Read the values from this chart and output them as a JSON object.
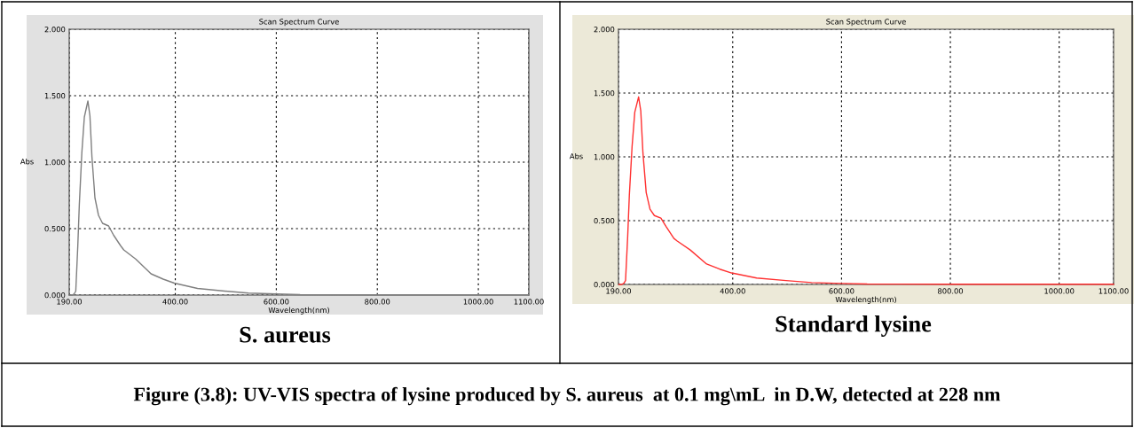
{
  "chart_data": [
    {
      "type": "line",
      "title": "Scan Spectrum Curve",
      "xlabel": "Wavelength(nm)",
      "ylabel": "Abs",
      "x": [
        191,
        196,
        200,
        203,
        207,
        210,
        215,
        220,
        227,
        231,
        235,
        241,
        248,
        256,
        268,
        278,
        292,
        298,
        322,
        352,
        376,
        398,
        444,
        498,
        545,
        600,
        647,
        800,
        1000,
        1100
      ],
      "series": [
        {
          "color": "#7f7f7f",
          "values": [
            0,
            0,
            0.01,
            0.03,
            0.37,
            0.68,
            1.07,
            1.34,
            1.46,
            1.35,
            1.04,
            0.73,
            0.6,
            0.54,
            0.52,
            0.45,
            0.37,
            0.34,
            0.27,
            0.16,
            0.12,
            0.09,
            0.05,
            0.03,
            0.015,
            0.008,
            0.003,
            0.002,
            0.002,
            0.002
          ]
        }
      ],
      "xlim": [
        190,
        1100
      ],
      "ylim": [
        0,
        2
      ],
      "xticks": [
        {
          "value": 190,
          "label": "190.00"
        },
        {
          "value": 400,
          "label": "400.00"
        },
        {
          "value": 600,
          "label": "600.00"
        },
        {
          "value": 800,
          "label": "800.00"
        },
        {
          "value": 1000,
          "label": "1000.00"
        },
        {
          "value": 1100,
          "label": "1100.00"
        }
      ],
      "yticks": [
        {
          "value": 0,
          "label": "0.000"
        },
        {
          "value": 0.5,
          "label": "0.500"
        },
        {
          "value": 1,
          "label": "1.000"
        },
        {
          "value": 1.5,
          "label": "1.500"
        },
        {
          "value": 2,
          "label": "2.000"
        }
      ],
      "grid": true,
      "annotations": [
        "S. aureus",
        "Figure (3.8): UV-VIS spectra of lysine produced by S. aureus  at 0.1 mg\\mL  in D.W, detected at 228 nm"
      ]
    },
    {
      "type": "line",
      "title": "Scan Spectrum Curve",
      "xlabel": "Wavelength(nm)",
      "ylabel": "Abs",
      "x": [
        191,
        196,
        200,
        203,
        207,
        210,
        215,
        220,
        227,
        231,
        235,
        241,
        248,
        256,
        268,
        278,
        292,
        298,
        322,
        352,
        376,
        398,
        444,
        498,
        545,
        600,
        647,
        800,
        1000,
        1100
      ],
      "series": [
        {
          "color": "#ff3030",
          "values": [
            0,
            0,
            0.01,
            0.03,
            0.38,
            0.7,
            1.08,
            1.35,
            1.47,
            1.36,
            1.03,
            0.72,
            0.59,
            0.54,
            0.52,
            0.45,
            0.36,
            0.34,
            0.27,
            0.16,
            0.12,
            0.09,
            0.05,
            0.03,
            0.015,
            0.008,
            0.003,
            0.002,
            0.002,
            0.002
          ]
        }
      ],
      "xlim": [
        190,
        1100
      ],
      "ylim": [
        0,
        2
      ],
      "xticks": [
        {
          "value": 190,
          "label": "190.00"
        },
        {
          "value": 400,
          "label": "400.00"
        },
        {
          "value": 600,
          "label": "600.00"
        },
        {
          "value": 800,
          "label": "800.00"
        },
        {
          "value": 1000,
          "label": "1000.00"
        },
        {
          "value": 1100,
          "label": "1100.00"
        }
      ],
      "yticks": [
        {
          "value": 0,
          "label": "0.000"
        },
        {
          "value": 0.5,
          "label": "0.500"
        },
        {
          "value": 1,
          "label": "1.000"
        },
        {
          "value": 1.5,
          "label": "1.500"
        },
        {
          "value": 2,
          "label": "2.000"
        }
      ],
      "grid": true,
      "annotations": [
        "Standard lysine"
      ]
    }
  ]
}
